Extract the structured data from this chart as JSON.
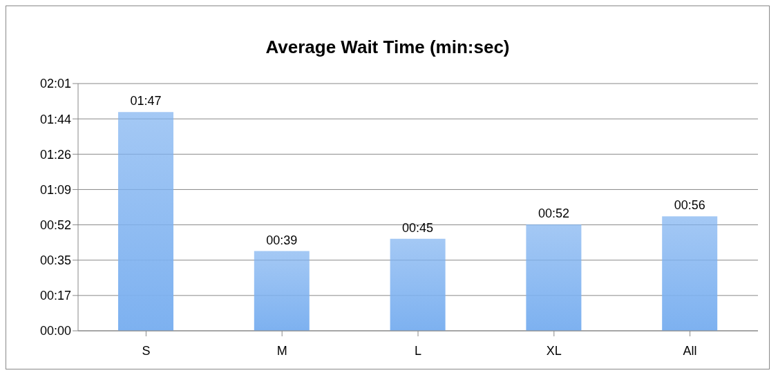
{
  "chart_data": {
    "type": "bar",
    "title": "Average Wait Time (min:sec)",
    "categories": [
      "S",
      "M",
      "L",
      "XL",
      "All"
    ],
    "values": [
      107,
      39,
      45,
      52,
      56
    ],
    "value_labels": [
      "01:47",
      "00:39",
      "00:45",
      "00:52",
      "00:56"
    ],
    "color": "#7db1f0",
    "ylim": [
      0,
      120.96
    ],
    "yticks": [
      {
        "value": 0,
        "label": "00:00"
      },
      {
        "value": 17.28,
        "label": "00:17"
      },
      {
        "value": 34.56,
        "label": "00:35"
      },
      {
        "value": 51.84,
        "label": "00:52"
      },
      {
        "value": 69.12,
        "label": "01:09"
      },
      {
        "value": 86.4,
        "label": "01:26"
      },
      {
        "value": 103.68,
        "label": "01:44"
      },
      {
        "value": 120.96,
        "label": "02:01"
      }
    ],
    "grid": "y",
    "legend": false
  }
}
